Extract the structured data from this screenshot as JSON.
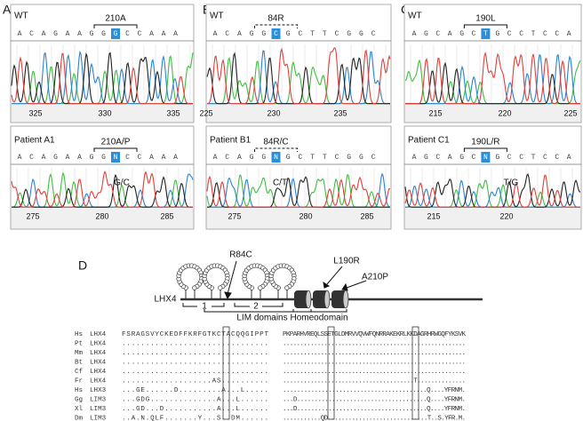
{
  "panels": [
    {
      "label": "A",
      "wt": {
        "label": "WT",
        "mutation": "210A",
        "sequence": [
          "A",
          "C",
          "A",
          "G",
          "A",
          "A",
          "G",
          "G",
          "G",
          "C",
          "C",
          "A",
          "A",
          "A"
        ],
        "highlight": 8,
        "ticks": [
          325,
          330,
          335
        ]
      },
      "patient": {
        "label": "Patient A1",
        "mutation": "210A/P",
        "sequence": [
          "A",
          "C",
          "A",
          "G",
          "A",
          "A",
          "G",
          "G",
          "N",
          "C",
          "C",
          "A",
          "A",
          "A"
        ],
        "highlight": 8,
        "call": "G/C",
        "ticks": [
          275,
          280,
          285
        ]
      }
    },
    {
      "label": "B",
      "wt": {
        "label": "WT",
        "mutation": "84R",
        "sequence": [
          "A",
          "C",
          "A",
          "G",
          "G",
          "C",
          "G",
          "C",
          "T",
          "T",
          "C",
          "G",
          "G",
          "C"
        ],
        "highlight": 5,
        "ticks": [
          225,
          230,
          235
        ]
      },
      "patient": {
        "label": "Patient B1",
        "mutation": "84R/C",
        "sequence": [
          "A",
          "C",
          "A",
          "G",
          "G",
          "N",
          "G",
          "C",
          "T",
          "T",
          "C",
          "G",
          "G",
          "C"
        ],
        "highlight": 5,
        "call": "C/T",
        "ticks": [
          275,
          280,
          285
        ]
      }
    },
    {
      "label": "C",
      "wt": {
        "label": "WT",
        "mutation": "190L",
        "sequence": [
          "A",
          "G",
          "C",
          "A",
          "G",
          "C",
          "T",
          "G",
          "C",
          "C",
          "T",
          "C",
          "C",
          "A"
        ],
        "highlight": 6,
        "ticks": [
          215,
          220,
          225
        ]
      },
      "patient": {
        "label": "Patient C1",
        "mutation": "190L/R",
        "sequence": [
          "A",
          "G",
          "C",
          "A",
          "G",
          "C",
          "N",
          "G",
          "C",
          "C",
          "T",
          "C",
          "C",
          "A"
        ],
        "highlight": 6,
        "call": "T/G",
        "ticks": [
          215,
          220
        ]
      }
    }
  ],
  "diagram": {
    "label": "D",
    "protein": "LHX4",
    "mutations": [
      "R84C",
      "L190R",
      "A210P"
    ],
    "domain_numbers": [
      "1",
      "2"
    ],
    "domains": [
      "LIM domains",
      "Homeodomain"
    ]
  },
  "alignment": {
    "rows": [
      {
        "species": "Hs",
        "gene": "LHX4",
        "left": "FSRAGSVYCKEDFFKRFGTKCTACQQGIPPT",
        "right": "PKPARHVREQLSSETGLDMRVVQVWFQNRRAKEKRLKKDAGRHRWGQFYKSVK"
      },
      {
        "species": "Pt",
        "gene": "LHX4",
        "left": "...............................",
        "right": "....................................................."
      },
      {
        "species": "Mm",
        "gene": "LHX4",
        "left": "...............................",
        "right": "....................................................."
      },
      {
        "species": "Bt",
        "gene": "LHX4",
        "left": "...............................",
        "right": "....................................................."
      },
      {
        "species": "Cf",
        "gene": "LHX4",
        "left": "...............................",
        "right": "....................................................."
      },
      {
        "species": "Fr",
        "gene": "LHX4",
        "left": "...................AS..........",
        "right": "......................................T.............."
      },
      {
        "species": "Hs",
        "gene": "LHX3",
        "left": "...GE......D.........A...L.....",
        "right": ".........................................Q....YFRNM."
      },
      {
        "species": "Gg",
        "gene": "LIM3",
        "left": "...GDG..............A...L......",
        "right": "...D.....................................Q....YFRNM."
      },
      {
        "species": "Xl",
        "gene": "LIM3",
        "left": "...GD...D...........A...L......",
        "right": "...D.....................................Q....YFRNM."
      },
      {
        "species": "Dm",
        "gene": "LIM3",
        "left": "..A.N.QLF.......Y...S..DM......",
        "right": "...........QD.............................T..S.YFR.M."
      }
    ]
  }
}
